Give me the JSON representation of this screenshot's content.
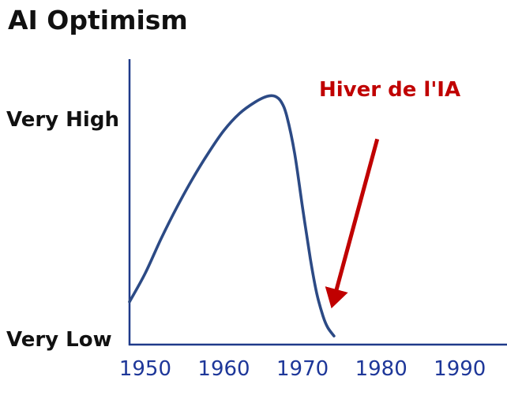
{
  "chart_data": {
    "type": "line",
    "title": "AI Optimism",
    "xlabel": "",
    "ylabel": "",
    "xlim": [
      1948,
      1996
    ],
    "ylim": [
      0,
      1
    ],
    "x_ticks": [
      1950,
      1960,
      1970,
      1980,
      1990
    ],
    "y_tick_labels": [
      {
        "label": "Very High",
        "value": 0.79
      },
      {
        "label": "Very Low",
        "value": 0.02
      }
    ],
    "series": [
      {
        "name": "",
        "x": [
          1948.0,
          1950.0,
          1952.0,
          1954.0,
          1956.0,
          1958.0,
          1960.0,
          1962.0,
          1964.0,
          1965.5,
          1966.5,
          1967.3,
          1968.0,
          1969.0,
          1970.0,
          1971.0,
          1971.8,
          1972.6,
          1973.2,
          1974.0
        ],
        "y": [
          0.15,
          0.25,
          0.37,
          0.48,
          0.58,
          0.67,
          0.75,
          0.81,
          0.85,
          0.87,
          0.87,
          0.85,
          0.8,
          0.67,
          0.48,
          0.3,
          0.18,
          0.1,
          0.06,
          0.03
        ]
      }
    ],
    "grid": false,
    "legend": "none",
    "annotations": [
      {
        "text": "Hiver de l'IA",
        "arrow_target": [
          1974.0,
          0.16
        ],
        "arrow_from": [
          1979.5,
          0.72
        ]
      }
    ],
    "colors": {
      "line": "#2c4a85",
      "axis": "#1f3a8a",
      "tick_label": "#1e3799",
      "annotation": "#c00000",
      "title": "#111111"
    }
  }
}
